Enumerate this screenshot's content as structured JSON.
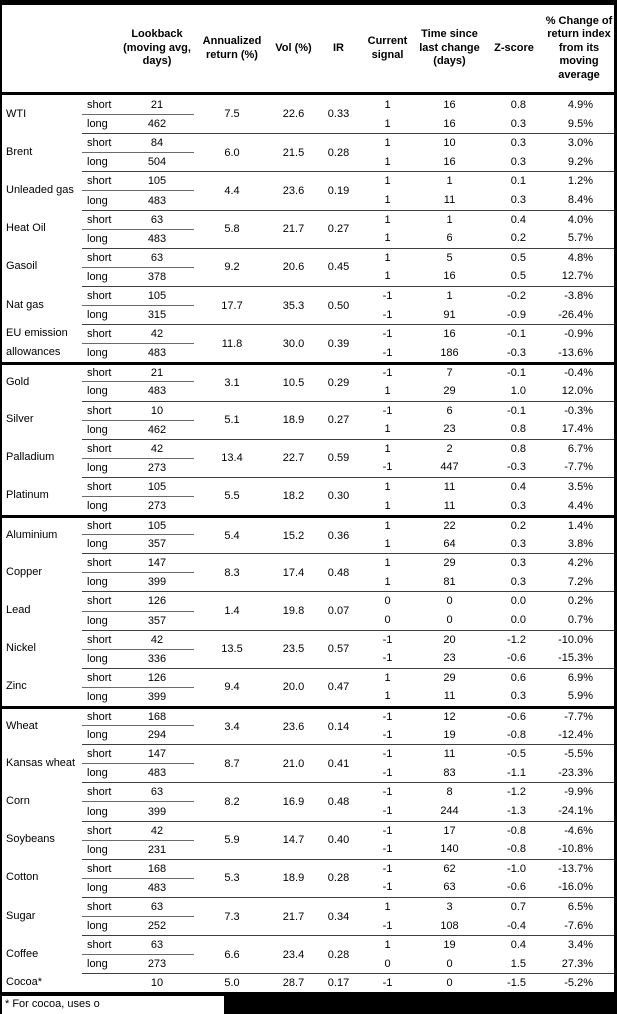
{
  "table": {
    "columns": [
      "",
      "",
      "Lookback (moving avg, days)",
      "Annualized return (%)",
      "Vol (%)",
      "IR",
      "Current signal",
      "Time since last change (days)",
      "Z-score",
      "% Change of return index from its moving average"
    ],
    "sections": [
      {
        "id": "energy",
        "commodities": [
          {
            "name": "WTI",
            "annualized": "7.5",
            "vol": "22.6",
            "ir": "0.33",
            "legs": [
              {
                "label": "short",
                "lookback": "21",
                "signal": "1",
                "time": "16",
                "z": "0.8",
                "pct": "4.9%"
              },
              {
                "label": "long",
                "lookback": "462",
                "signal": "1",
                "time": "16",
                "z": "0.3",
                "pct": "9.5%"
              }
            ]
          },
          {
            "name": "Brent",
            "annualized": "6.0",
            "vol": "21.5",
            "ir": "0.28",
            "legs": [
              {
                "label": "short",
                "lookback": "84",
                "signal": "1",
                "time": "10",
                "z": "0.3",
                "pct": "3.0%"
              },
              {
                "label": "long",
                "lookback": "504",
                "signal": "1",
                "time": "16",
                "z": "0.3",
                "pct": "9.2%"
              }
            ]
          },
          {
            "name": "Unleaded gas",
            "annualized": "4.4",
            "vol": "23.6",
            "ir": "0.19",
            "legs": [
              {
                "label": "short",
                "lookback": "105",
                "signal": "1",
                "time": "1",
                "z": "0.1",
                "pct": "1.2%"
              },
              {
                "label": "long",
                "lookback": "483",
                "signal": "1",
                "time": "11",
                "z": "0.3",
                "pct": "8.4%"
              }
            ]
          },
          {
            "name": "Heat Oil",
            "annualized": "5.8",
            "vol": "21.7",
            "ir": "0.27",
            "legs": [
              {
                "label": "short",
                "lookback": "63",
                "signal": "1",
                "time": "1",
                "z": "0.4",
                "pct": "4.0%"
              },
              {
                "label": "long",
                "lookback": "483",
                "signal": "1",
                "time": "6",
                "z": "0.2",
                "pct": "5.7%"
              }
            ]
          },
          {
            "name": "Gasoil",
            "annualized": "9.2",
            "vol": "20.6",
            "ir": "0.45",
            "legs": [
              {
                "label": "short",
                "lookback": "63",
                "signal": "1",
                "time": "5",
                "z": "0.5",
                "pct": "4.8%"
              },
              {
                "label": "long",
                "lookback": "378",
                "signal": "1",
                "time": "16",
                "z": "0.5",
                "pct": "12.7%"
              }
            ]
          },
          {
            "name": "Nat gas",
            "annualized": "17.7",
            "vol": "35.3",
            "ir": "0.50",
            "legs": [
              {
                "label": "short",
                "lookback": "105",
                "signal": "-1",
                "time": "1",
                "z": "-0.2",
                "pct": "-3.8%"
              },
              {
                "label": "long",
                "lookback": "315",
                "signal": "-1",
                "time": "91",
                "z": "-0.9",
                "pct": "-26.4%"
              }
            ]
          },
          {
            "name": "EU emission allowances",
            "annualized": "11.8",
            "vol": "30.0",
            "ir": "0.39",
            "legs": [
              {
                "label": "short",
                "lookback": "42",
                "signal": "-1",
                "time": "16",
                "z": "-0.1",
                "pct": "-0.9%"
              },
              {
                "label": "long",
                "lookback": "483",
                "signal": "-1",
                "time": "186",
                "z": "-0.3",
                "pct": "-13.6%"
              }
            ]
          }
        ]
      },
      {
        "id": "precious-metals",
        "commodities": [
          {
            "name": "Gold",
            "annualized": "3.1",
            "vol": "10.5",
            "ir": "0.29",
            "legs": [
              {
                "label": "short",
                "lookback": "21",
                "signal": "-1",
                "time": "7",
                "z": "-0.1",
                "pct": "-0.4%"
              },
              {
                "label": "long",
                "lookback": "483",
                "signal": "1",
                "time": "29",
                "z": "1.0",
                "pct": "12.0%"
              }
            ]
          },
          {
            "name": "Silver",
            "annualized": "5.1",
            "vol": "18.9",
            "ir": "0.27",
            "legs": [
              {
                "label": "short",
                "lookback": "10",
                "signal": "-1",
                "time": "6",
                "z": "-0.1",
                "pct": "-0.3%"
              },
              {
                "label": "long",
                "lookback": "462",
                "signal": "1",
                "time": "23",
                "z": "0.8",
                "pct": "17.4%"
              }
            ]
          },
          {
            "name": "Palladium",
            "annualized": "13.4",
            "vol": "22.7",
            "ir": "0.59",
            "legs": [
              {
                "label": "short",
                "lookback": "42",
                "signal": "1",
                "time": "2",
                "z": "0.8",
                "pct": "6.7%"
              },
              {
                "label": "long",
                "lookback": "273",
                "signal": "-1",
                "time": "447",
                "z": "-0.3",
                "pct": "-7.7%"
              }
            ]
          },
          {
            "name": "Platinum",
            "annualized": "5.5",
            "vol": "18.2",
            "ir": "0.30",
            "legs": [
              {
                "label": "short",
                "lookback": "105",
                "signal": "1",
                "time": "11",
                "z": "0.4",
                "pct": "3.5%"
              },
              {
                "label": "long",
                "lookback": "273",
                "signal": "1",
                "time": "11",
                "z": "0.3",
                "pct": "4.4%"
              }
            ]
          }
        ]
      },
      {
        "id": "base-metals",
        "commodities": [
          {
            "name": "Aluminium",
            "annualized": "5.4",
            "vol": "15.2",
            "ir": "0.36",
            "legs": [
              {
                "label": "short",
                "lookback": "105",
                "signal": "1",
                "time": "22",
                "z": "0.2",
                "pct": "1.4%"
              },
              {
                "label": "long",
                "lookback": "357",
                "signal": "1",
                "time": "64",
                "z": "0.3",
                "pct": "3.8%"
              }
            ]
          },
          {
            "name": "Copper",
            "annualized": "8.3",
            "vol": "17.4",
            "ir": "0.48",
            "legs": [
              {
                "label": "short",
                "lookback": "147",
                "signal": "1",
                "time": "29",
                "z": "0.3",
                "pct": "4.2%"
              },
              {
                "label": "long",
                "lookback": "399",
                "signal": "1",
                "time": "81",
                "z": "0.3",
                "pct": "7.2%"
              }
            ]
          },
          {
            "name": "Lead",
            "annualized": "1.4",
            "vol": "19.8",
            "ir": "0.07",
            "legs": [
              {
                "label": "short",
                "lookback": "126",
                "signal": "0",
                "time": "0",
                "z": "0.0",
                "pct": "0.2%"
              },
              {
                "label": "long",
                "lookback": "357",
                "signal": "0",
                "time": "0",
                "z": "0.0",
                "pct": "0.7%"
              }
            ]
          },
          {
            "name": "Nickel",
            "annualized": "13.5",
            "vol": "23.5",
            "ir": "0.57",
            "legs": [
              {
                "label": "short",
                "lookback": "42",
                "signal": "-1",
                "time": "20",
                "z": "-1.2",
                "pct": "-10.0%"
              },
              {
                "label": "long",
                "lookback": "336",
                "signal": "-1",
                "time": "23",
                "z": "-0.6",
                "pct": "-15.3%"
              }
            ]
          },
          {
            "name": "Zinc",
            "annualized": "9.4",
            "vol": "20.0",
            "ir": "0.47",
            "legs": [
              {
                "label": "short",
                "lookback": "126",
                "signal": "1",
                "time": "29",
                "z": "0.6",
                "pct": "6.9%"
              },
              {
                "label": "long",
                "lookback": "399",
                "signal": "1",
                "time": "11",
                "z": "0.3",
                "pct": "5.9%"
              }
            ]
          }
        ]
      },
      {
        "id": "agriculture",
        "commodities": [
          {
            "name": "Wheat",
            "annualized": "3.4",
            "vol": "23.6",
            "ir": "0.14",
            "legs": [
              {
                "label": "short",
                "lookback": "168",
                "signal": "-1",
                "time": "12",
                "z": "-0.6",
                "pct": "-7.7%"
              },
              {
                "label": "long",
                "lookback": "294",
                "signal": "-1",
                "time": "19",
                "z": "-0.8",
                "pct": "-12.4%"
              }
            ]
          },
          {
            "name": "Kansas wheat",
            "annualized": "8.7",
            "vol": "21.0",
            "ir": "0.41",
            "legs": [
              {
                "label": "short",
                "lookback": "147",
                "signal": "-1",
                "time": "11",
                "z": "-0.5",
                "pct": "-5.5%"
              },
              {
                "label": "long",
                "lookback": "483",
                "signal": "-1",
                "time": "83",
                "z": "-1.1",
                "pct": "-23.3%"
              }
            ]
          },
          {
            "name": "Corn",
            "annualized": "8.2",
            "vol": "16.9",
            "ir": "0.48",
            "legs": [
              {
                "label": "short",
                "lookback": "63",
                "signal": "-1",
                "time": "8",
                "z": "-1.2",
                "pct": "-9.9%"
              },
              {
                "label": "long",
                "lookback": "399",
                "signal": "-1",
                "time": "244",
                "z": "-1.3",
                "pct": "-24.1%"
              }
            ]
          },
          {
            "name": "Soybeans",
            "annualized": "5.9",
            "vol": "14.7",
            "ir": "0.40",
            "legs": [
              {
                "label": "short",
                "lookback": "42",
                "signal": "-1",
                "time": "17",
                "z": "-0.8",
                "pct": "-4.6%"
              },
              {
                "label": "long",
                "lookback": "231",
                "signal": "-1",
                "time": "140",
                "z": "-0.8",
                "pct": "-10.8%"
              }
            ]
          },
          {
            "name": "Cotton",
            "annualized": "5.3",
            "vol": "18.9",
            "ir": "0.28",
            "legs": [
              {
                "label": "short",
                "lookback": "168",
                "signal": "-1",
                "time": "62",
                "z": "-1.0",
                "pct": "-13.7%"
              },
              {
                "label": "long",
                "lookback": "483",
                "signal": "-1",
                "time": "63",
                "z": "-0.6",
                "pct": "-16.0%"
              }
            ]
          },
          {
            "name": "Sugar",
            "annualized": "7.3",
            "vol": "21.7",
            "ir": "0.34",
            "legs": [
              {
                "label": "short",
                "lookback": "63",
                "signal": "1",
                "time": "3",
                "z": "0.7",
                "pct": "6.5%"
              },
              {
                "label": "long",
                "lookback": "252",
                "signal": "-1",
                "time": "108",
                "z": "-0.4",
                "pct": "-7.6%"
              }
            ]
          },
          {
            "name": "Coffee",
            "annualized": "6.6",
            "vol": "23.4",
            "ir": "0.28",
            "legs": [
              {
                "label": "short",
                "lookback": "63",
                "signal": "1",
                "time": "19",
                "z": "0.4",
                "pct": "3.4%"
              },
              {
                "label": "long",
                "lookback": "273",
                "signal": "0",
                "time": "0",
                "z": "1.5",
                "pct": "27.3%"
              }
            ]
          },
          {
            "name": "Cocoa*",
            "annualized": "5.0",
            "vol": "28.7",
            "ir": "0.17",
            "legs": [
              {
                "label": "",
                "lookback": "10",
                "signal": "-1",
                "time": "0",
                "z": "-1.5",
                "pct": "-5.2%"
              }
            ]
          }
        ]
      }
    ]
  },
  "footnote": {
    "visible_text": "* For cocoa, uses o"
  }
}
